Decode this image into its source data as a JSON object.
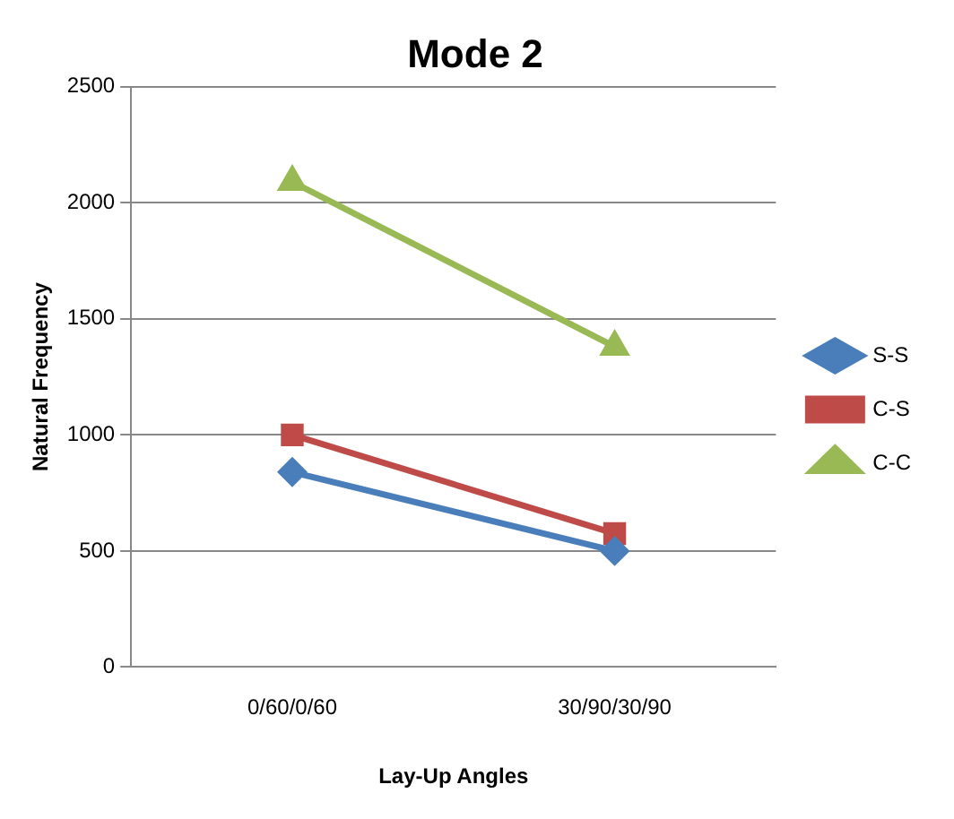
{
  "chart_data": {
    "type": "line",
    "title": "Mode 2",
    "xlabel": "Lay-Up Angles",
    "ylabel": "Natural Frequency",
    "categories": [
      "0/60/0/60",
      "30/90/30/90"
    ],
    "series": [
      {
        "name": "S-S",
        "color": "#4a7ebb",
        "marker": "diamond",
        "values": [
          840,
          500
        ]
      },
      {
        "name": "C-S",
        "color": "#be4b48",
        "marker": "square",
        "values": [
          1000,
          575
        ]
      },
      {
        "name": "C-C",
        "color": "#98b954",
        "marker": "triangle",
        "values": [
          2090,
          1380
        ]
      }
    ],
    "ylim": [
      0,
      2500
    ],
    "yticks": [
      0,
      500,
      1000,
      1500,
      2000,
      2500
    ],
    "grid": "y",
    "legend": "right"
  }
}
